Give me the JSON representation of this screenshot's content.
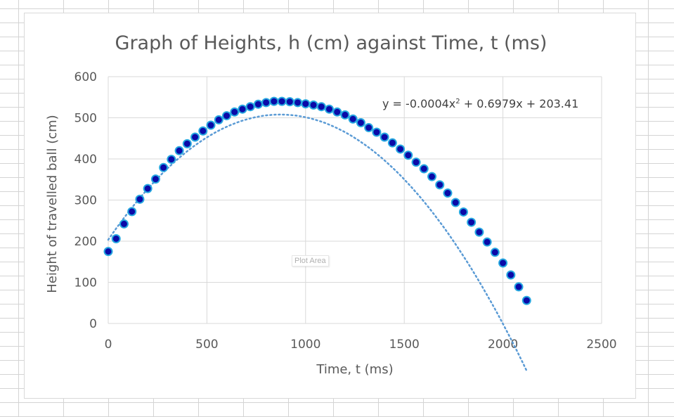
{
  "chart_data": {
    "type": "scatter",
    "title": "Graph of Heights, h (cm) against Time, t (ms)",
    "xlabel": "Time, t (ms)",
    "ylabel": "Height of travelled ball (cm)",
    "xlim": [
      0,
      2500
    ],
    "ylim": [
      0,
      600
    ],
    "x_ticks": [
      "0",
      "500",
      "1000",
      "1500",
      "2000",
      "2500"
    ],
    "y_ticks": [
      "0",
      "100",
      "200",
      "300",
      "400",
      "500",
      "600"
    ],
    "x_tick_values": [
      0,
      500,
      1000,
      1500,
      2000,
      2500
    ],
    "y_tick_values": [
      0,
      100,
      200,
      300,
      400,
      500,
      600
    ],
    "grid": true,
    "trendline": {
      "type": "polynomial",
      "a": -0.0004,
      "b": 0.6979,
      "c": 203.41,
      "x_range": [
        0,
        2120
      ],
      "color": "#5b9bd5"
    },
    "equation": {
      "base": "y = -0.0004x",
      "sup": "2",
      "rest": " + 0.6979x + 203.41"
    },
    "marker_fill": "#0a0aa8",
    "marker_stroke": "#26a7e0",
    "series": [
      {
        "x": [
          0,
          40,
          80,
          120,
          160,
          200,
          240,
          280,
          320,
          360,
          400,
          440,
          480,
          520,
          560,
          600,
          640,
          680,
          720,
          760,
          800,
          840,
          880,
          920,
          960,
          1000,
          1040,
          1080,
          1120,
          1160,
          1200,
          1240,
          1280,
          1320,
          1360,
          1400,
          1440,
          1480,
          1520,
          1560,
          1600,
          1640,
          1680,
          1720,
          1760,
          1800,
          1840,
          1880,
          1920,
          1960,
          2000,
          2040,
          2080,
          2120
        ],
        "y": [
          175,
          206,
          242,
          272,
          302,
          328,
          351,
          379,
          399,
          420,
          437,
          453,
          468,
          482,
          495,
          505,
          514,
          521,
          527,
          533,
          537,
          540,
          540,
          539,
          537,
          534,
          531,
          527,
          521,
          514,
          507,
          497,
          488,
          476,
          465,
          453,
          439,
          424,
          409,
          392,
          376,
          357,
          337,
          317,
          294,
          271,
          246,
          222,
          198,
          173,
          147,
          118,
          89,
          56
        ]
      }
    ]
  },
  "overlay": {
    "plot_area_label": "Plot Area"
  }
}
